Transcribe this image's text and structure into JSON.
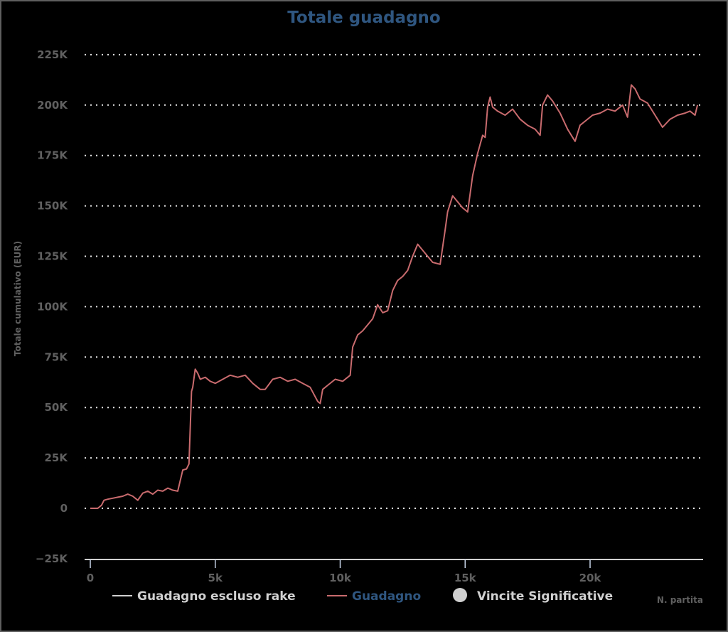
{
  "chart_data": {
    "type": "line",
    "title": "Totale guadagno",
    "xlabel": "N. partita",
    "ylabel": "Totale cumulativo (EUR)",
    "xlim": [
      0,
      24500
    ],
    "ylim": [
      -25000,
      225000
    ],
    "x_ticks": [
      "0",
      "5k",
      "10k",
      "15k",
      "20k"
    ],
    "y_ticks": [
      "225K",
      "200K",
      "175K",
      "150K",
      "125K",
      "100K",
      "75K",
      "50K",
      "25K",
      "0",
      "-25K"
    ],
    "grid": true,
    "legend_position": "bottom",
    "legend": [
      {
        "name": "Guadagno escluso rake",
        "color": "#d0d0d0",
        "symbol": "line"
      },
      {
        "name": "Guadagno",
        "color": "#c96b6e",
        "symbol": "line",
        "text_color": "#2f5680"
      },
      {
        "name": "Vincite Significative",
        "color": "#d0d0d0",
        "symbol": "circle"
      }
    ],
    "series": [
      {
        "name": "Guadagno",
        "color": "#c96b6e",
        "x": [
          0,
          300,
          450,
          550,
          700,
          900,
          1100,
          1300,
          1500,
          1700,
          1900,
          2100,
          2300,
          2500,
          2700,
          2900,
          3100,
          3300,
          3500,
          3700,
          3850,
          3950,
          4050,
          4100,
          4200,
          4300,
          4400,
          4600,
          4800,
          5000,
          5300,
          5600,
          5900,
          6200,
          6500,
          6800,
          7000,
          7300,
          7600,
          7900,
          8200,
          8500,
          8800,
          9100,
          9200,
          9300,
          9500,
          9800,
          10100,
          10300,
          10400,
          10500,
          10700,
          10900,
          11100,
          11300,
          11500,
          11700,
          11900,
          12100,
          12300,
          12500,
          12700,
          12900,
          13100,
          13300,
          13500,
          13700,
          14000,
          14200,
          14300,
          14500,
          14700,
          14900,
          15100,
          15300,
          15500,
          15700,
          15800,
          15900,
          16000,
          16100,
          16300,
          16600,
          16900,
          17200,
          17500,
          17800,
          18000,
          18100,
          18300,
          18500,
          18800,
          19100,
          19400,
          19600,
          19800,
          20100,
          20400,
          20700,
          21000,
          21300,
          21500,
          21650,
          21800,
          22000,
          22300,
          22600,
          22900,
          23200,
          23500,
          23800,
          24000,
          24200,
          24300
        ],
        "y": [
          0,
          0,
          1500,
          4000,
          4500,
          5000,
          5500,
          6000,
          7000,
          6000,
          4000,
          7500,
          8500,
          7000,
          9000,
          8500,
          10000,
          9000,
          8500,
          19000,
          19500,
          22000,
          58000,
          60000,
          69000,
          67000,
          64000,
          65000,
          63000,
          62000,
          64000,
          66000,
          65000,
          66000,
          62000,
          59000,
          59000,
          64000,
          65000,
          63000,
          64000,
          62000,
          60000,
          53000,
          52000,
          59000,
          61000,
          64000,
          63000,
          65000,
          66000,
          80000,
          86000,
          88000,
          91000,
          94000,
          101000,
          97000,
          98000,
          108000,
          113000,
          115000,
          118000,
          125000,
          131000,
          128000,
          125000,
          122000,
          121000,
          138000,
          147000,
          155000,
          152000,
          149000,
          147000,
          165000,
          176000,
          185000,
          184000,
          199000,
          204000,
          199000,
          197000,
          195000,
          198000,
          193000,
          190000,
          188000,
          185000,
          200000,
          205000,
          202000,
          196000,
          188000,
          182000,
          190000,
          192000,
          195000,
          196000,
          198000,
          197000,
          200000,
          194000,
          210000,
          208000,
          203000,
          201000,
          195000,
          189000,
          193000,
          195000,
          196000,
          197000,
          195000,
          200000
        ]
      },
      {
        "name": "Guadagno escluso rake",
        "color": "#d0d0d0",
        "x": [],
        "y": []
      },
      {
        "name": "Vincite Significative",
        "color": "#d0d0d0",
        "x": [],
        "y": []
      }
    ]
  }
}
